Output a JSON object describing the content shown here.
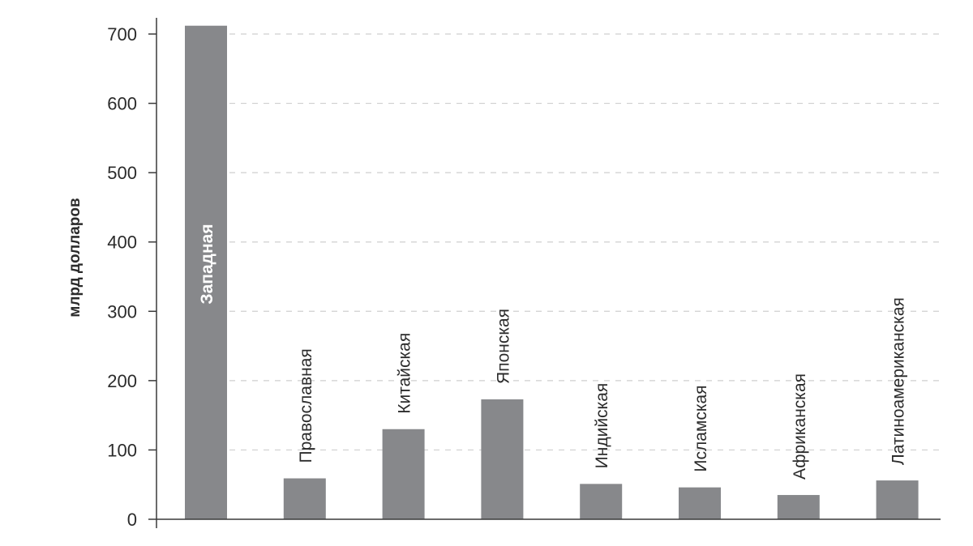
{
  "chart_data": {
    "type": "bar",
    "title": "",
    "xlabel": "",
    "ylabel": "млрд долларов",
    "ylim": [
      0,
      700
    ],
    "yticks": [
      0,
      100,
      200,
      300,
      400,
      500,
      600,
      700
    ],
    "grid": "horizontal-dashed",
    "categories": [
      "Западная",
      "Православная",
      "Китайская",
      "Японская",
      "Индийская",
      "Исламская",
      "Африканская",
      "Латиноамериканская"
    ],
    "values": [
      712,
      59,
      130,
      173,
      51,
      46,
      35,
      56
    ],
    "colors": {
      "bar": "#87888b",
      "axis": "#3a3a3a",
      "grid": "#cfcfcf",
      "text": "#2b2b2b"
    }
  }
}
